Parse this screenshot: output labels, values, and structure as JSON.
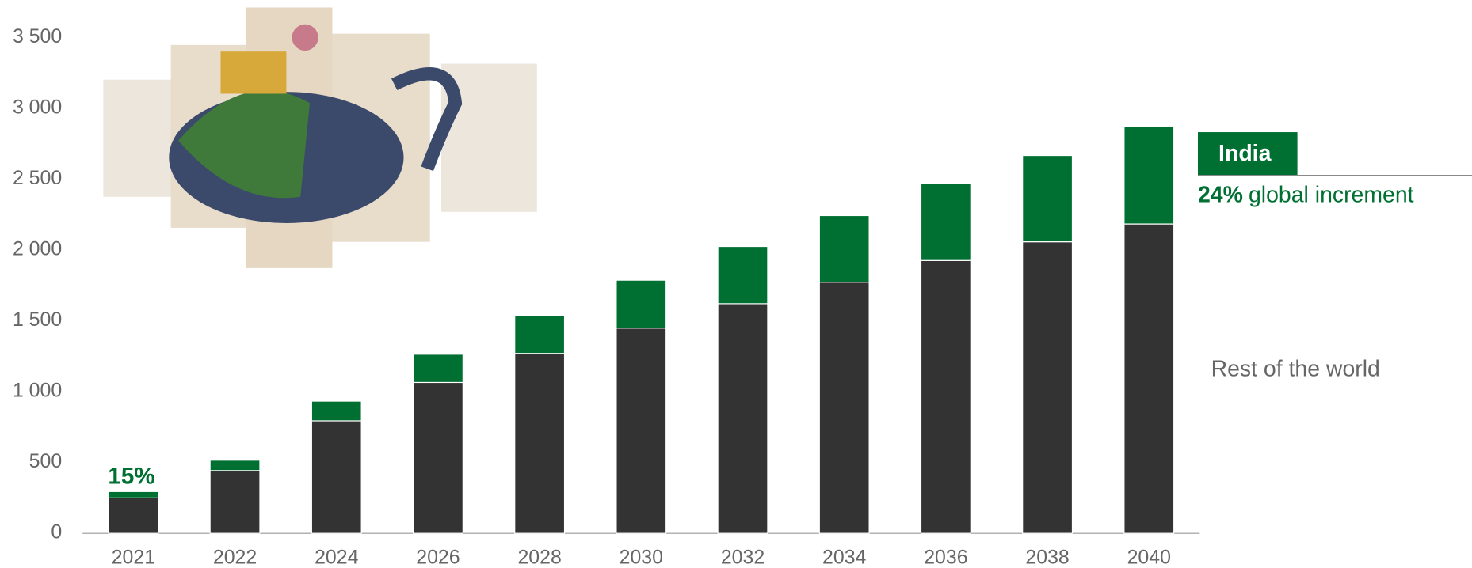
{
  "chart_data": {
    "type": "stacked_bar",
    "categories": [
      "2021",
      "2022",
      "2024",
      "2026",
      "2028",
      "2030",
      "2032",
      "2034",
      "2036",
      "2038",
      "2040"
    ],
    "series": [
      {
        "name": "Rest of the world",
        "color": "#333333",
        "values": [
          250,
          443,
          794,
          1065,
          1270,
          1449,
          1621,
          1773,
          1926,
          2058,
          2184
        ]
      },
      {
        "name": "India",
        "color": "#006f32",
        "values": [
          45,
          73,
          139,
          199,
          265,
          338,
          404,
          470,
          542,
          609,
          688
        ]
      }
    ],
    "ylim": [
      0,
      3500
    ],
    "yticks": [
      0,
      500,
      {
        "value": 1000,
        "label": "1 000"
      },
      {
        "value": 1500,
        "label": "1 500"
      },
      {
        "value": 2000,
        "label": "2 000"
      },
      {
        "value": 2500,
        "label": "2 500"
      },
      {
        "value": 3000,
        "label": "3 000"
      },
      {
        "value": 3500,
        "label": "3 500"
      }
    ],
    "first_bar_annotation": "15%",
    "india_share": "24%",
    "india_share_text": "global increment"
  }
}
